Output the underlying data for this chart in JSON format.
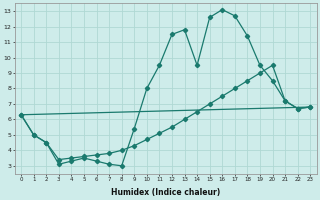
{
  "xlabel": "Humidex (Indice chaleur)",
  "bg_color": "#ceecea",
  "grid_color": "#b0d8d4",
  "line_color": "#1a7a6e",
  "line1_x": [
    0,
    1,
    2,
    3,
    4,
    5,
    6,
    7,
    8,
    9,
    10,
    11,
    12,
    13,
    14,
    15,
    16,
    17,
    18,
    19,
    20,
    21,
    22,
    23
  ],
  "line1_y": [
    6.3,
    5.0,
    4.5,
    3.1,
    3.3,
    3.5,
    3.3,
    3.1,
    3.0,
    5.4,
    8.0,
    9.5,
    11.5,
    11.8,
    9.5,
    12.6,
    13.1,
    12.7,
    11.4,
    9.5,
    8.5,
    7.2,
    6.7,
    6.8
  ],
  "line2_x": [
    0,
    23
  ],
  "line2_y": [
    6.3,
    6.8
  ],
  "line3_x": [
    0,
    1,
    2,
    3,
    4,
    5,
    6,
    7,
    8,
    9,
    10,
    11,
    12,
    13,
    14,
    15,
    16,
    17,
    18,
    19,
    20,
    21,
    22,
    23
  ],
  "line3_y": [
    6.3,
    5.0,
    4.5,
    3.4,
    3.5,
    3.6,
    3.7,
    3.8,
    4.0,
    4.3,
    4.7,
    5.1,
    5.5,
    6.0,
    6.5,
    7.0,
    7.5,
    8.0,
    8.5,
    9.0,
    9.5,
    7.2,
    6.7,
    6.8
  ],
  "ylim": [
    2.5,
    13.5
  ],
  "xlim": [
    -0.5,
    23.5
  ],
  "yticks": [
    3,
    4,
    5,
    6,
    7,
    8,
    9,
    10,
    11,
    12,
    13
  ],
  "xticks": [
    0,
    1,
    2,
    3,
    4,
    5,
    6,
    7,
    8,
    9,
    10,
    11,
    12,
    13,
    14,
    15,
    16,
    17,
    18,
    19,
    20,
    21,
    22,
    23
  ],
  "xtick_labels": [
    "0",
    "1",
    "2",
    "3",
    "4",
    "5",
    "6",
    "7",
    "8",
    "9",
    "10",
    "11",
    "12",
    "13",
    "14",
    "15",
    "16",
    "17",
    "18",
    "19",
    "20",
    "21",
    "22",
    "23"
  ]
}
